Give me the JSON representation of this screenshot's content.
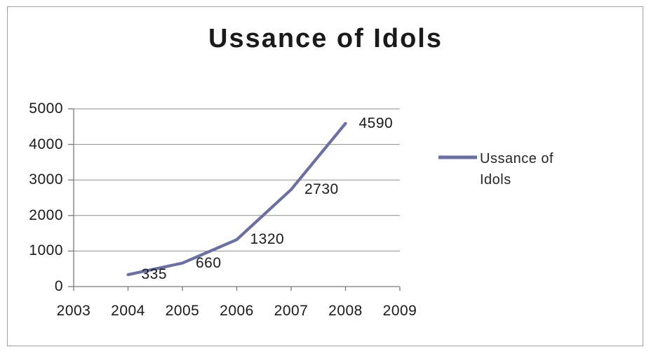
{
  "chart_data": {
    "type": "line",
    "title": "Ussance of Idols",
    "x": [
      2004,
      2005,
      2006,
      2007,
      2008
    ],
    "values": [
      335,
      660,
      1320,
      2730,
      4590
    ],
    "data_labels": [
      "335",
      "660",
      "1320",
      "2730",
      "4590"
    ],
    "xlim": [
      2003,
      2009
    ],
    "ylim": [
      0,
      5000
    ],
    "xticks": [
      2003,
      2004,
      2005,
      2006,
      2007,
      2008,
      2009
    ],
    "yticks": [
      0,
      1000,
      2000,
      3000,
      4000,
      5000
    ],
    "grid": "horizontal",
    "legend_position": "right",
    "series": [
      {
        "name": "Ussance of Idols",
        "color": "#6c70a0"
      }
    ]
  },
  "colors": {
    "series_line": "#6c70a0",
    "gridline": "#8e8e8e",
    "axis": "#7a7a7a",
    "border": "#a0a0a0",
    "text": "#1a1a1a",
    "background": "#ffffff"
  }
}
